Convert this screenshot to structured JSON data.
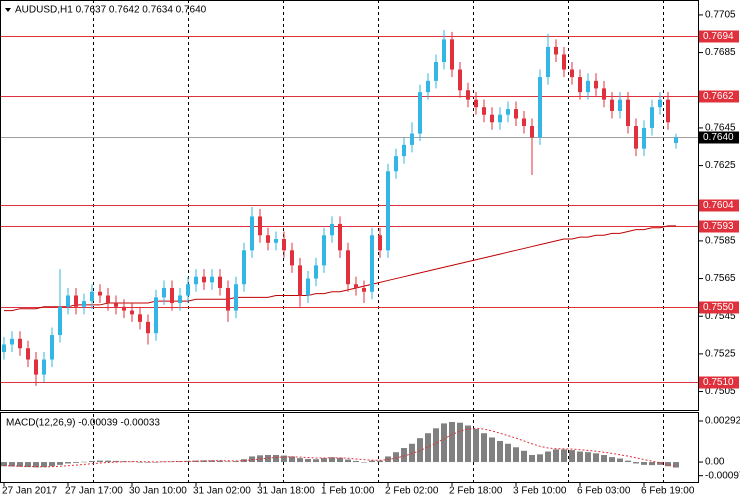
{
  "chart_data": {
    "type": "candlestick",
    "title": "AUDUSD,H1  0.7637 0.7642 0.7634 0.7640",
    "categories": [
      "27 Jan 2017",
      null,
      null,
      null,
      null,
      null,
      null,
      null,
      "27 Jan 17:00",
      null,
      null,
      null,
      null,
      null,
      null,
      null,
      "30 Jan 10:00",
      null,
      null,
      null,
      null,
      null,
      null,
      null,
      "31 Jan 02:00",
      null,
      null,
      null,
      null,
      null,
      null,
      null,
      "31 Jan 18:00",
      null,
      null,
      null,
      null,
      null,
      null,
      null,
      "1 Feb 10:00",
      null,
      null,
      null,
      null,
      null,
      null,
      null,
      "2 Feb 02:00",
      null,
      null,
      null,
      null,
      null,
      null,
      null,
      "2 Feb 18:00",
      null,
      null,
      null,
      null,
      null,
      null,
      null,
      "3 Feb 10:00",
      null,
      null,
      null,
      null,
      null,
      null,
      null,
      "6 Feb 03:00",
      null,
      null,
      null,
      null,
      null,
      null,
      null,
      "6 Feb 19:00",
      null,
      null,
      null,
      null
    ],
    "open": [
      0.7526,
      0.753,
      0.7533,
      0.7528,
      0.7522,
      0.7514,
      0.7522,
      0.7535,
      0.755,
      0.7556,
      0.755,
      0.7553,
      0.7558,
      0.7556,
      0.7552,
      0.755,
      0.7548,
      0.7546,
      0.7542,
      0.7536,
      0.7555,
      0.756,
      0.7552,
      0.7556,
      0.7562,
      0.7566,
      0.7563,
      0.7566,
      0.756,
      0.7548,
      0.7562,
      0.758,
      0.7598,
      0.7588,
      0.7584,
      0.7586,
      0.758,
      0.7572,
      0.7556,
      0.7565,
      0.7572,
      0.7588,
      0.7594,
      0.758,
      0.7562,
      0.756,
      0.7558,
      0.7588,
      0.758,
      0.7622,
      0.763,
      0.7636,
      0.7642,
      0.7664,
      0.767,
      0.768,
      0.7692,
      0.7676,
      0.7665,
      0.766,
      0.7656,
      0.7652,
      0.7648,
      0.7652,
      0.7655,
      0.765,
      0.7646,
      0.764,
      0.7672,
      0.7688,
      0.7684,
      0.7676,
      0.7672,
      0.7664,
      0.767,
      0.7666,
      0.766,
      0.7654,
      0.766,
      0.7646,
      0.7634,
      0.7645,
      0.7656,
      0.766,
      0.7637
    ],
    "high": [
      0.7534,
      0.7537,
      0.7537,
      0.7532,
      0.7526,
      0.7526,
      0.7539,
      0.757,
      0.756,
      0.756,
      0.7557,
      0.7562,
      0.7562,
      0.756,
      0.7556,
      0.7554,
      0.7552,
      0.755,
      0.7546,
      0.7559,
      0.7564,
      0.7564,
      0.756,
      0.7566,
      0.757,
      0.757,
      0.757,
      0.757,
      0.7564,
      0.7566,
      0.7584,
      0.7603,
      0.7602,
      0.7592,
      0.759,
      0.759,
      0.7584,
      0.7576,
      0.7569,
      0.7576,
      0.7592,
      0.7598,
      0.7598,
      0.7584,
      0.7566,
      0.7564,
      0.7592,
      0.7592,
      0.7626,
      0.7634,
      0.764,
      0.7648,
      0.7668,
      0.7674,
      0.7684,
      0.7697,
      0.7696,
      0.768,
      0.7669,
      0.7664,
      0.766,
      0.7656,
      0.7656,
      0.7659,
      0.7659,
      0.7654,
      0.765,
      0.7676,
      0.7695,
      0.7692,
      0.7688,
      0.768,
      0.7676,
      0.7674,
      0.7674,
      0.767,
      0.7664,
      0.7664,
      0.7664,
      0.765,
      0.7649,
      0.766,
      0.7664,
      0.7664,
      0.7642
    ],
    "low": [
      0.7522,
      0.7526,
      0.7524,
      0.7518,
      0.7508,
      0.751,
      0.7518,
      0.7531,
      0.7546,
      0.7546,
      0.7546,
      0.7549,
      0.7552,
      0.7548,
      0.7546,
      0.7544,
      0.7542,
      0.7538,
      0.753,
      0.7532,
      0.7551,
      0.7548,
      0.7548,
      0.7552,
      0.7558,
      0.7559,
      0.7559,
      0.7556,
      0.7542,
      0.7544,
      0.7558,
      0.7576,
      0.7584,
      0.758,
      0.758,
      0.7576,
      0.7568,
      0.755,
      0.7552,
      0.7561,
      0.7568,
      0.7584,
      0.7576,
      0.7558,
      0.7556,
      0.7552,
      0.7554,
      0.7576,
      0.7576,
      0.7618,
      0.7626,
      0.7632,
      0.7638,
      0.766,
      0.7666,
      0.7676,
      0.7672,
      0.7661,
      0.7656,
      0.7652,
      0.7648,
      0.7644,
      0.7644,
      0.7648,
      0.7646,
      0.7642,
      0.762,
      0.7636,
      0.7668,
      0.768,
      0.7672,
      0.7668,
      0.766,
      0.766,
      0.7662,
      0.7656,
      0.765,
      0.765,
      0.7642,
      0.763,
      0.763,
      0.7641,
      0.7652,
      0.7644,
      0.7634
    ],
    "close": [
      0.753,
      0.7533,
      0.7528,
      0.7522,
      0.7514,
      0.7522,
      0.7535,
      0.755,
      0.7556,
      0.755,
      0.7553,
      0.7558,
      0.7556,
      0.7552,
      0.755,
      0.7548,
      0.7546,
      0.7542,
      0.7536,
      0.7555,
      0.756,
      0.7552,
      0.7556,
      0.7562,
      0.7566,
      0.7563,
      0.7566,
      0.756,
      0.7548,
      0.7562,
      0.758,
      0.7598,
      0.7588,
      0.7584,
      0.7586,
      0.758,
      0.7572,
      0.7556,
      0.7565,
      0.7572,
      0.7588,
      0.7594,
      0.758,
      0.7562,
      0.756,
      0.7558,
      0.7588,
      0.758,
      0.7622,
      0.763,
      0.7636,
      0.7642,
      0.7664,
      0.767,
      0.768,
      0.7692,
      0.7676,
      0.7665,
      0.766,
      0.7656,
      0.7652,
      0.7648,
      0.7652,
      0.7655,
      0.765,
      0.7646,
      0.764,
      0.7672,
      0.7688,
      0.7684,
      0.7676,
      0.7672,
      0.7664,
      0.767,
      0.7666,
      0.766,
      0.7654,
      0.766,
      0.7646,
      0.7634,
      0.7645,
      0.7656,
      0.766,
      0.7648,
      0.764
    ],
    "ma": [
      0.7548,
      0.7548,
      0.7549,
      0.7549,
      0.7549,
      0.755,
      0.755,
      0.755,
      0.755,
      0.7551,
      0.7551,
      0.7551,
      0.7551,
      0.7552,
      0.7552,
      0.7552,
      0.7552,
      0.7552,
      0.7552,
      0.7553,
      0.7553,
      0.7553,
      0.7553,
      0.7553,
      0.7554,
      0.7554,
      0.7554,
      0.7554,
      0.7554,
      0.7555,
      0.7555,
      0.7555,
      0.7555,
      0.7555,
      0.7556,
      0.7556,
      0.7556,
      0.7556,
      0.7556,
      0.7557,
      0.7557,
      0.7558,
      0.7558,
      0.7559,
      0.756,
      0.7561,
      0.7562,
      0.7563,
      0.7564,
      0.7565,
      0.7566,
      0.7567,
      0.7568,
      0.7569,
      0.757,
      0.7571,
      0.7572,
      0.7573,
      0.7574,
      0.7575,
      0.7576,
      0.7577,
      0.7578,
      0.7579,
      0.758,
      0.7581,
      0.7582,
      0.7583,
      0.7584,
      0.7585,
      0.7586,
      0.7586,
      0.7587,
      0.7587,
      0.7588,
      0.7588,
      0.7589,
      0.7589,
      0.759,
      0.7591,
      0.7591,
      0.7592,
      0.7592,
      0.7593,
      0.7593
    ],
    "up_color": "#33b5e5",
    "down_color": "#e0303c",
    "ma_color": "#c00000",
    "level_color": "#e0303c",
    "ylim": [
      0.74952,
      0.77124
    ],
    "yticks": [
      0.7705,
      0.7685,
      0.7645,
      0.7625,
      0.7585,
      0.7565,
      0.7545,
      0.7525,
      0.7505
    ],
    "levels": [
      0.7694,
      0.7662,
      0.7604,
      0.7593,
      {
        "value": 0.755,
        "label": "0.7550"
      },
      {
        "value": 0.751,
        "label": "0.7510"
      }
    ],
    "current_price": {
      "value": 0.764,
      "label": "0.7640"
    },
    "macd": {
      "title": "MACD(12,26,9) -0.00039 -0.00033",
      "histogram": [
        -0.0003,
        -0.00032,
        -0.00034,
        -0.00036,
        -0.00038,
        -0.00036,
        -0.0003,
        -0.0002,
        -0.0001,
        -6e-05,
        2e-05,
        8e-05,
        0.0001,
        0.0001,
        8e-05,
        6e-05,
        4e-05,
        0,
        -4e-05,
        0,
        4e-05,
        4e-05,
        6e-05,
        8e-05,
        0.0001,
        0.00012,
        0.00012,
        0.0001,
        4e-05,
        6e-05,
        0.0002,
        0.0004,
        0.00048,
        0.0005,
        0.0005,
        0.00046,
        0.0004,
        0.00028,
        0.00022,
        0.0002,
        0.00028,
        0.00034,
        0.0003,
        0.00018,
        8e-05,
        0,
        0.0001,
        0.0001,
        0.0004,
        0.0007,
        0.001,
        0.0013,
        0.0017,
        0.00205,
        0.0024,
        0.00275,
        0.00285,
        0.0028,
        0.0026,
        0.00235,
        0.00205,
        0.00175,
        0.0015,
        0.0013,
        0.00105,
        0.0008,
        0.0005,
        0.00055,
        0.00075,
        0.0009,
        0.0009,
        0.00085,
        0.00075,
        0.0007,
        0.00062,
        0.0005,
        0.00035,
        0.00025,
        0.0001,
        -0.0001,
        -0.0002,
        -0.00022,
        -0.0002,
        -0.0003,
        -0.00039
      ],
      "signal": [
        -0.00025,
        -0.00027,
        -0.00029,
        -0.00031,
        -0.00033,
        -0.00034,
        -0.00033,
        -0.0003,
        -0.00026,
        -0.00022,
        -0.00017,
        -0.00012,
        -7e-05,
        -3e-05,
        0,
        2e-05,
        3e-05,
        3e-05,
        2e-05,
        1e-05,
        2e-05,
        3e-05,
        4e-05,
        5e-05,
        6e-05,
        8e-05,
        9e-05,
        0.0001,
        9e-05,
        8e-05,
        0.0001,
        0.00016,
        0.00022,
        0.00028,
        0.00033,
        0.00036,
        0.00037,
        0.00035,
        0.00032,
        0.00029,
        0.00029,
        0.0003,
        0.0003,
        0.00027,
        0.00022,
        0.00017,
        0.00014,
        0.00012,
        0.00018,
        0.00028,
        0.00043,
        0.0006,
        0.00082,
        0.00107,
        0.00135,
        0.00165,
        0.00195,
        0.0022,
        0.00235,
        0.0024,
        0.00235,
        0.00222,
        0.00205,
        0.00188,
        0.0017,
        0.0015,
        0.0013,
        0.00112,
        0.001,
        0.00095,
        0.00094,
        0.00092,
        0.00088,
        0.00083,
        0.00077,
        0.0007,
        0.00062,
        0.00052,
        0.00042,
        0.0003,
        0.00018,
        6e-05,
        -4e-05,
        -0.00018,
        -0.00033
      ],
      "hist_color": "#808080",
      "signal_color": "#e0303c",
      "ylim": [
        -0.00142,
        0.00349
      ],
      "yticks": [
        0.00292,
        {
          "value": 0,
          "label": "0.00"
        },
        -0.00097
      ]
    }
  }
}
